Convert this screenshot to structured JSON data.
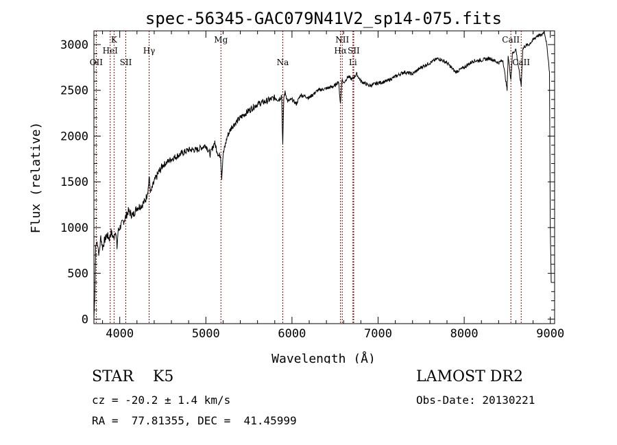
{
  "chart_data": {
    "type": "line",
    "title": "spec-56345-GAC079N41V2_sp14-075.fits",
    "xlabel": "Wavelength (Å)",
    "ylabel": "Flux (relative)",
    "xlim": [
      3700,
      9050
    ],
    "ylim": [
      -50,
      3150
    ],
    "xticks": [
      4000,
      5000,
      6000,
      7000,
      8000,
      9000
    ],
    "yticks": [
      0,
      500,
      1000,
      1500,
      2000,
      2500,
      3000
    ],
    "grid": false,
    "series": [
      {
        "name": "spectrum",
        "x": [
          3700,
          3710,
          3720,
          3740,
          3760,
          3780,
          3800,
          3820,
          3850,
          3880,
          3900,
          3930,
          3950,
          3968,
          3980,
          4000,
          4050,
          4100,
          4150,
          4200,
          4250,
          4300,
          4330,
          4340,
          4360,
          4400,
          4450,
          4500,
          4600,
          4700,
          4800,
          4900,
          5000,
          5050,
          5100,
          5150,
          5170,
          5184,
          5200,
          5250,
          5300,
          5400,
          5500,
          5600,
          5700,
          5800,
          5850,
          5880,
          5893,
          5905,
          5920,
          5950,
          6000,
          6050,
          6100,
          6200,
          6300,
          6400,
          6500,
          6540,
          6563,
          6580,
          6600,
          6650,
          6700,
          6750,
          6800,
          6900,
          7000,
          7100,
          7200,
          7300,
          7400,
          7500,
          7600,
          7700,
          7800,
          7900,
          8000,
          8100,
          8200,
          8300,
          8400,
          8450,
          8498,
          8510,
          8542,
          8560,
          8600,
          8662,
          8680,
          8700,
          8750,
          8800,
          8850,
          8900,
          8930,
          8950,
          8970,
          8990,
          9000,
          9010
        ],
        "y": [
          0,
          250,
          800,
          850,
          700,
          900,
          780,
          850,
          920,
          880,
          950,
          880,
          980,
          780,
          960,
          1000,
          1080,
          1180,
          1130,
          1220,
          1240,
          1300,
          1420,
          1550,
          1380,
          1500,
          1600,
          1680,
          1750,
          1800,
          1850,
          1850,
          1900,
          1800,
          1930,
          1780,
          1800,
          1550,
          1800,
          2000,
          2100,
          2200,
          2280,
          2350,
          2380,
          2420,
          2400,
          2450,
          1900,
          2420,
          2480,
          2380,
          2400,
          2350,
          2450,
          2420,
          2500,
          2520,
          2550,
          2600,
          2350,
          2620,
          2580,
          2650,
          2620,
          2680,
          2600,
          2550,
          2580,
          2600,
          2650,
          2700,
          2680,
          2750,
          2800,
          2850,
          2800,
          2700,
          2750,
          2820,
          2830,
          2850,
          2800,
          2830,
          2500,
          2880,
          2620,
          2900,
          2950,
          2550,
          2950,
          2980,
          3000,
          3050,
          3100,
          3100,
          3150,
          3050,
          2900,
          2700,
          1000,
          400
        ]
      }
    ],
    "lines": [
      {
        "label": "OII",
        "x": 3727,
        "row": 3
      },
      {
        "label": "K",
        "x": 3934,
        "row": 1
      },
      {
        "label": "HeI",
        "x": 3889,
        "row": 2
      },
      {
        "label": "SII",
        "x": 4070,
        "row": 3
      },
      {
        "label": "Hγ",
        "x": 4341,
        "row": 2
      },
      {
        "label": "Mg",
        "x": 5175,
        "row": 1
      },
      {
        "label": "Na",
        "x": 5893,
        "row": 3
      },
      {
        "label": "NII",
        "x": 6584,
        "row": 1
      },
      {
        "label": "Hα",
        "x": 6563,
        "row": 2
      },
      {
        "label": "SII",
        "x": 6717,
        "row": 2
      },
      {
        "label": "Li",
        "x": 6708,
        "row": 3
      },
      {
        "label": "CaII",
        "x": 8542,
        "row": 1
      },
      {
        "label": "CaII",
        "x": 8662,
        "row": 3
      }
    ]
  },
  "info": {
    "star_class": "STAR    K5",
    "survey": "LAMOST DR2",
    "cz": "cz = -20.2 ± 1.4 km/s",
    "obs_date": "Obs-Date: 20130221",
    "radec": "RA =  77.81355, DEC =  41.45999"
  },
  "colors": {
    "axis": "#000000",
    "spectrum": "#000000",
    "line_markers": "#8b0000"
  }
}
